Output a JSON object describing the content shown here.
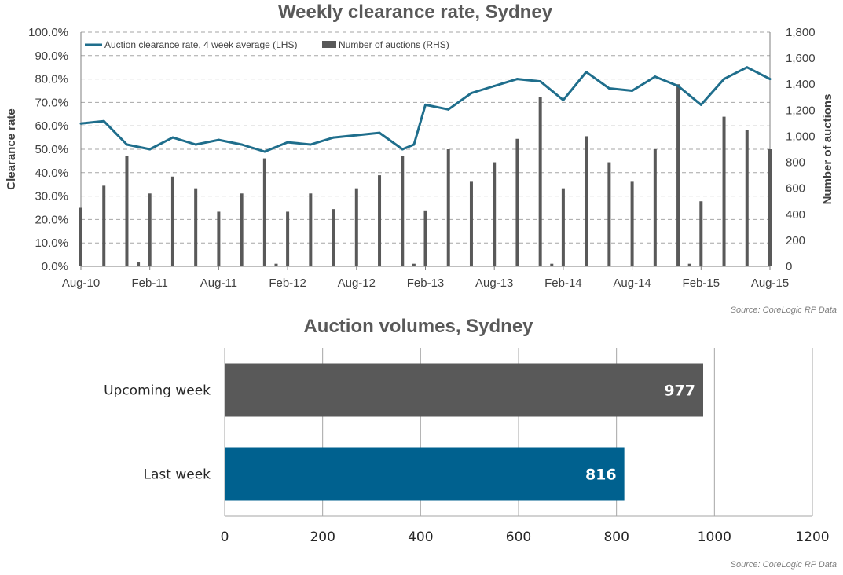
{
  "chart_data": [
    {
      "type": "bar+line",
      "title": "Weekly clearance  rate, Sydney",
      "ylabel": "Clearance rate",
      "y2label": "Number of auctions",
      "ylim": [
        0,
        100
      ],
      "y2lim": [
        0,
        1800
      ],
      "yticks": [
        "0.0%",
        "10.0%",
        "20.0%",
        "30.0%",
        "40.0%",
        "50.0%",
        "60.0%",
        "70.0%",
        "80.0%",
        "90.0%",
        "100.0%"
      ],
      "y2ticks": [
        "0",
        "200",
        "400",
        "600",
        "800",
        "1,000",
        "1,200",
        "1,400",
        "1,600",
        "1,800"
      ],
      "xticks": [
        "Aug-10",
        "Feb-11",
        "Aug-11",
        "Feb-12",
        "Aug-12",
        "Feb-13",
        "Aug-13",
        "Feb-14",
        "Aug-14",
        "Feb-15",
        "Aug-15"
      ],
      "grid": "horizontal dashed",
      "legend": "top-left",
      "colors": {
        "line": "#1f6e8c",
        "bars": "#595959"
      },
      "series": [
        {
          "name": "Auction clearance rate, 4 week average (LHS)",
          "kind": "line",
          "axis": "left",
          "x": [
            "Aug-10",
            "Oct-10",
            "Dec-10",
            "Feb-11",
            "Apr-11",
            "Jun-11",
            "Aug-11",
            "Oct-11",
            "Dec-11",
            "Feb-12",
            "Apr-12",
            "Jun-12",
            "Aug-12",
            "Oct-12",
            "Dec-12",
            "Jan-13",
            "Feb-13",
            "Apr-13",
            "Jun-13",
            "Aug-13",
            "Oct-13",
            "Dec-13",
            "Feb-14",
            "Apr-14",
            "Jun-14",
            "Aug-14",
            "Oct-14",
            "Dec-14",
            "Feb-15",
            "Apr-15",
            "Jun-15",
            "Aug-15"
          ],
          "values": [
            61,
            62,
            52,
            50,
            55,
            52,
            54,
            52,
            49,
            53,
            52,
            55,
            56,
            57,
            50,
            52,
            69,
            67,
            74,
            77,
            80,
            79,
            71,
            83,
            76,
            75,
            81,
            77,
            69,
            80,
            85,
            80
          ]
        },
        {
          "name": "Number of auctions (RHS)",
          "kind": "bar",
          "axis": "right",
          "x": [
            "Aug-10",
            "Oct-10",
            "Dec-10",
            "Jan-11",
            "Feb-11",
            "Apr-11",
            "Jun-11",
            "Aug-11",
            "Oct-11",
            "Dec-11",
            "Jan-12",
            "Feb-12",
            "Apr-12",
            "Jun-12",
            "Aug-12",
            "Oct-12",
            "Dec-12",
            "Jan-13",
            "Feb-13",
            "Apr-13",
            "Jun-13",
            "Aug-13",
            "Oct-13",
            "Dec-13",
            "Jan-14",
            "Feb-14",
            "Apr-14",
            "Jun-14",
            "Aug-14",
            "Oct-14",
            "Dec-14",
            "Jan-15",
            "Feb-15",
            "Apr-15",
            "Jun-15",
            "Aug-15"
          ],
          "values": [
            450,
            620,
            850,
            30,
            560,
            690,
            600,
            420,
            560,
            830,
            20,
            420,
            560,
            440,
            600,
            700,
            850,
            20,
            430,
            900,
            650,
            800,
            980,
            1300,
            20,
            600,
            1000,
            800,
            650,
            900,
            1400,
            20,
            500,
            1150,
            1050,
            900
          ]
        }
      ]
    },
    {
      "type": "bar",
      "orientation": "horizontal",
      "title": "Auction volumes, Sydney",
      "categories": [
        "Upcoming week",
        "Last week"
      ],
      "values": [
        977,
        816
      ],
      "xlim": [
        0,
        1200
      ],
      "xticks": [
        "0",
        "200",
        "400",
        "600",
        "800",
        "1000",
        "1200"
      ],
      "colors": [
        "#595959",
        "#00618f"
      ],
      "grid": "vertical"
    }
  ],
  "source_top": "Source: CoreLogic  RP Data",
  "source_bottom": "Source: CoreLogic  RP Data"
}
